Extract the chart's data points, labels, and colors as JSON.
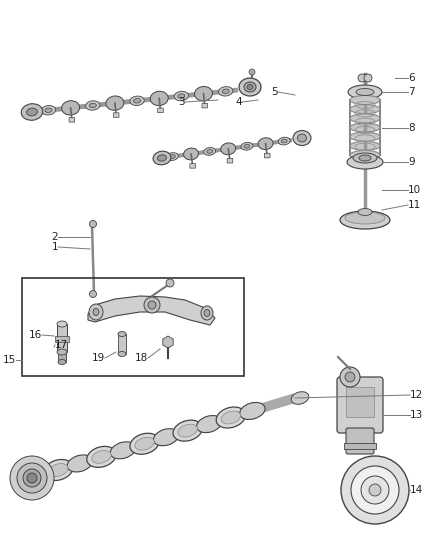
{
  "background_color": "#ffffff",
  "fig_width": 4.38,
  "fig_height": 5.33,
  "dpi": 100,
  "label_fontsize": 7.5,
  "label_color": "#222222",
  "line_color": "#555555",
  "component_edge": "#444444",
  "component_fill": "#d0d0d0",
  "component_fill2": "#b8b8b8",
  "component_fill3": "#e8e8e8"
}
